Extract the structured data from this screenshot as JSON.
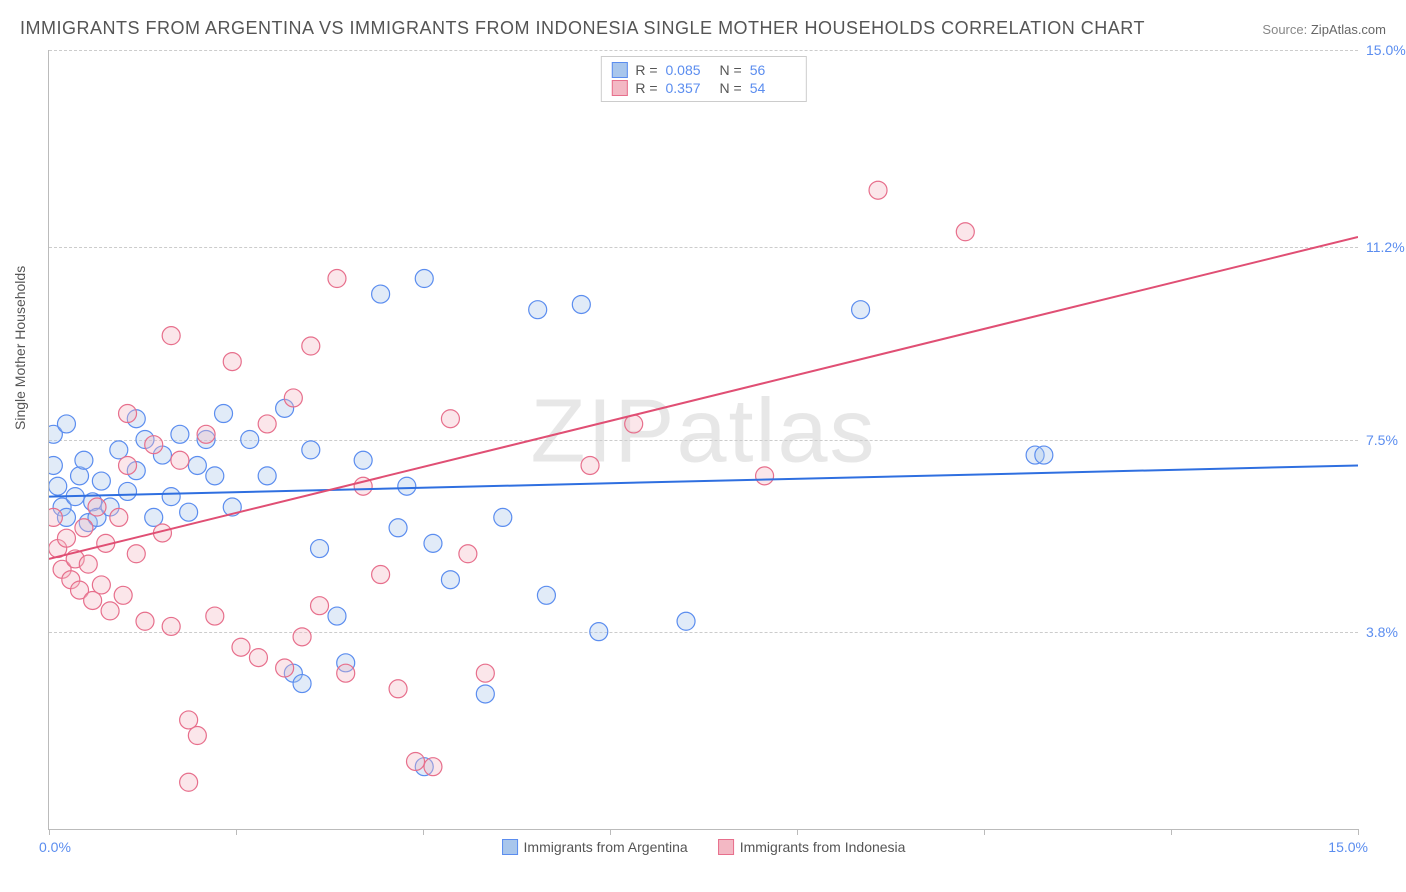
{
  "title": "IMMIGRANTS FROM ARGENTINA VS IMMIGRANTS FROM INDONESIA SINGLE MOTHER HOUSEHOLDS CORRELATION CHART",
  "source_label": "Source:",
  "source_value": "ZipAtlas.com",
  "watermark": "ZIPatlas",
  "ylabel": "Single Mother Households",
  "chart": {
    "type": "scatter",
    "xlim": [
      0,
      15
    ],
    "ylim": [
      0,
      15
    ],
    "x_tick_positions": [
      0,
      2.14,
      4.29,
      6.43,
      8.57,
      10.71,
      12.86,
      15
    ],
    "x_axis_labels": {
      "min": "0.0%",
      "max": "15.0%"
    },
    "y_grid": [
      {
        "value": 3.8,
        "label": "3.8%"
      },
      {
        "value": 7.5,
        "label": "7.5%"
      },
      {
        "value": 11.2,
        "label": "11.2%"
      },
      {
        "value": 15.0,
        "label": "15.0%"
      }
    ],
    "background_color": "#ffffff",
    "grid_color": "#cccccc",
    "axis_color": "#bbbbbb",
    "tick_label_color": "#5b8def",
    "title_fontsize": 18,
    "label_fontsize": 14
  },
  "series": [
    {
      "id": "argentina",
      "label": "Immigrants from Argentina",
      "fill": "#a8c6ec",
      "stroke": "#5b8def",
      "r_value": "0.085",
      "n_value": "56",
      "marker_radius": 9,
      "trend": {
        "x1": 0,
        "y1": 6.4,
        "x2": 15,
        "y2": 7.0,
        "color": "#2f6fe0"
      },
      "points": [
        [
          0.05,
          7.0
        ],
        [
          0.05,
          7.6
        ],
        [
          0.1,
          6.6
        ],
        [
          0.15,
          6.2
        ],
        [
          0.2,
          6.0
        ],
        [
          0.2,
          7.8
        ],
        [
          0.3,
          6.4
        ],
        [
          0.35,
          6.8
        ],
        [
          0.4,
          7.1
        ],
        [
          0.45,
          5.9
        ],
        [
          0.5,
          6.3
        ],
        [
          0.55,
          6.0
        ],
        [
          0.6,
          6.7
        ],
        [
          0.7,
          6.2
        ],
        [
          0.8,
          7.3
        ],
        [
          0.9,
          6.5
        ],
        [
          1.0,
          6.9
        ],
        [
          1.0,
          7.9
        ],
        [
          1.1,
          7.5
        ],
        [
          1.2,
          6.0
        ],
        [
          1.3,
          7.2
        ],
        [
          1.4,
          6.4
        ],
        [
          1.5,
          7.6
        ],
        [
          1.6,
          6.1
        ],
        [
          1.7,
          7.0
        ],
        [
          1.8,
          7.5
        ],
        [
          1.9,
          6.8
        ],
        [
          2.0,
          8.0
        ],
        [
          2.1,
          6.2
        ],
        [
          2.3,
          7.5
        ],
        [
          2.5,
          6.8
        ],
        [
          2.7,
          8.1
        ],
        [
          2.8,
          3.0
        ],
        [
          2.9,
          2.8
        ],
        [
          3.0,
          7.3
        ],
        [
          3.1,
          5.4
        ],
        [
          3.3,
          4.1
        ],
        [
          3.4,
          3.2
        ],
        [
          3.6,
          7.1
        ],
        [
          3.8,
          10.3
        ],
        [
          4.0,
          5.8
        ],
        [
          4.1,
          6.6
        ],
        [
          4.3,
          10.6
        ],
        [
          4.4,
          5.5
        ],
        [
          4.6,
          4.8
        ],
        [
          5.0,
          2.6
        ],
        [
          5.2,
          6.0
        ],
        [
          5.6,
          10.0
        ],
        [
          5.7,
          4.5
        ],
        [
          6.1,
          10.1
        ],
        [
          6.3,
          3.8
        ],
        [
          7.3,
          4.0
        ],
        [
          9.3,
          10.0
        ],
        [
          11.3,
          7.2
        ],
        [
          11.4,
          7.2
        ],
        [
          4.3,
          1.2
        ]
      ]
    },
    {
      "id": "indonesia",
      "label": "Immigrants from Indonesia",
      "fill": "#f3b8c4",
      "stroke": "#e76f8c",
      "r_value": "0.357",
      "n_value": "54",
      "marker_radius": 9,
      "trend": {
        "x1": 0,
        "y1": 5.2,
        "x2": 15,
        "y2": 11.4,
        "color": "#e04f74"
      },
      "points": [
        [
          0.05,
          6.0
        ],
        [
          0.1,
          5.4
        ],
        [
          0.15,
          5.0
        ],
        [
          0.2,
          5.6
        ],
        [
          0.25,
          4.8
        ],
        [
          0.3,
          5.2
        ],
        [
          0.35,
          4.6
        ],
        [
          0.4,
          5.8
        ],
        [
          0.45,
          5.1
        ],
        [
          0.5,
          4.4
        ],
        [
          0.55,
          6.2
        ],
        [
          0.6,
          4.7
        ],
        [
          0.65,
          5.5
        ],
        [
          0.7,
          4.2
        ],
        [
          0.8,
          6.0
        ],
        [
          0.85,
          4.5
        ],
        [
          0.9,
          7.0
        ],
        [
          1.0,
          5.3
        ],
        [
          1.1,
          4.0
        ],
        [
          1.2,
          7.4
        ],
        [
          1.3,
          5.7
        ],
        [
          1.4,
          3.9
        ],
        [
          1.5,
          7.1
        ],
        [
          1.6,
          2.1
        ],
        [
          1.6,
          0.9
        ],
        [
          1.7,
          1.8
        ],
        [
          1.8,
          7.6
        ],
        [
          1.9,
          4.1
        ],
        [
          2.1,
          9.0
        ],
        [
          2.2,
          3.5
        ],
        [
          2.4,
          3.3
        ],
        [
          2.5,
          7.8
        ],
        [
          2.7,
          3.1
        ],
        [
          2.8,
          8.3
        ],
        [
          2.9,
          3.7
        ],
        [
          3.0,
          9.3
        ],
        [
          3.1,
          4.3
        ],
        [
          3.3,
          10.6
        ],
        [
          3.4,
          3.0
        ],
        [
          3.6,
          6.6
        ],
        [
          3.8,
          4.9
        ],
        [
          4.0,
          2.7
        ],
        [
          4.2,
          1.3
        ],
        [
          4.4,
          1.2
        ],
        [
          4.6,
          7.9
        ],
        [
          4.8,
          5.3
        ],
        [
          5.0,
          3.0
        ],
        [
          6.2,
          7.0
        ],
        [
          6.7,
          7.8
        ],
        [
          8.2,
          6.8
        ],
        [
          9.5,
          12.3
        ],
        [
          10.5,
          11.5
        ],
        [
          0.9,
          8.0
        ],
        [
          1.4,
          9.5
        ]
      ]
    }
  ],
  "stats_labels": {
    "r": "R =",
    "n": "N ="
  }
}
